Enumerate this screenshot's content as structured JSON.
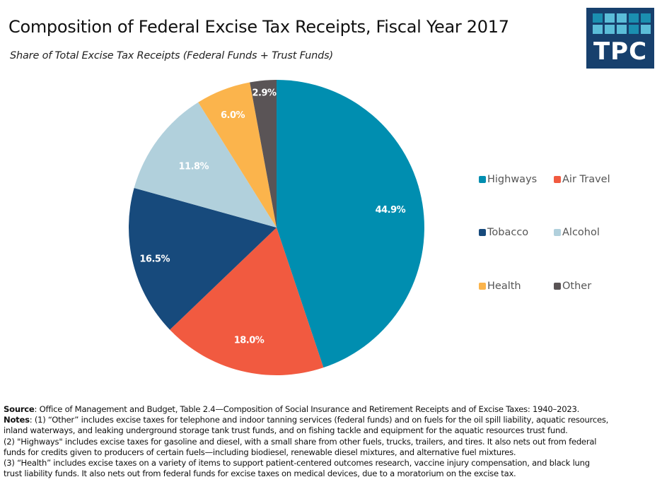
{
  "header": {
    "title": "Composition of Federal Excise Tax Receipts, Fiscal Year 2017",
    "subtitle": "Share of Total Excise Tax Receipts (Federal Funds + Trust Funds)"
  },
  "logo": {
    "text": "TPC",
    "background": "#17406d",
    "cells": [
      "#1b8fb0",
      "#5bbdd8",
      "#5bbdd8",
      "#1b8fb0",
      "#1b8fb0",
      "#5bbdd8",
      "#5bbdd8",
      "#5bbdd8",
      "#1b8fb0",
      "#5bbdd8"
    ]
  },
  "chart_data": {
    "type": "pie",
    "title": "Composition of Federal Excise Tax Receipts, Fiscal Year 2017",
    "subtitle": "Share of Total Excise Tax Receipts (Federal Funds + Trust Funds)",
    "start": "12 o'clock, clockwise",
    "legend_position": "right",
    "categories": [
      "Highways",
      "Air Travel",
      "Tobacco",
      "Alcohol",
      "Health",
      "Other"
    ],
    "values": [
      44.9,
      18.0,
      16.5,
      11.8,
      6.0,
      2.9
    ],
    "labels": [
      "44.9%",
      "18.0%",
      "16.5%",
      "11.8%",
      "6.0%",
      "2.9%"
    ],
    "colors": [
      "#008eb0",
      "#f15a40",
      "#174a7c",
      "#b1d0dc",
      "#fbb44c",
      "#5a5456"
    ],
    "unit": "%"
  },
  "legend": [
    {
      "label": "Highways",
      "color": "#008eb0"
    },
    {
      "label": "Air Travel",
      "color": "#f15a40"
    },
    {
      "label": "Tobacco",
      "color": "#174a7c"
    },
    {
      "label": "Alcohol",
      "color": "#b1d0dc"
    },
    {
      "label": "Health",
      "color": "#fbb44c"
    },
    {
      "label": "Other",
      "color": "#5a5456"
    }
  ],
  "footer": {
    "source_label": "Source",
    "source_text": ": Office of Management and Budget, Table 2.4—Composition of Social Insurance and Retirement Receipts and of Excise Taxes: 1940–2023.",
    "notes_label": "Notes",
    "notes_line1": ": (1) “Other” includes excise taxes for telephone and indoor tanning services (federal funds) and on fuels for the oil spill liability, aquatic resources,",
    "lines": [
      "inland waterways, and leaking underground storage tank trust funds, and on fishing tackle and equipment for the aquatic resources trust fund.",
      "(2) \"Highways\" includes excise taxes for gasoline and diesel, with a small share from other fuels, trucks, trailers, and tires. It also nets out from federal",
      "funds for credits given to producers of certain fuels—including biodiesel, renewable diesel mixtures, and alternative fuel mixtures.",
      "(3) “Health” includes excise taxes on a variety of items to support patient-centered outcomes research, vaccine injury compensation, and black lung",
      "trust liability funds. It also nets out from federal funds for excise taxes on medical devices, due to a moratorium on the excise tax."
    ]
  }
}
